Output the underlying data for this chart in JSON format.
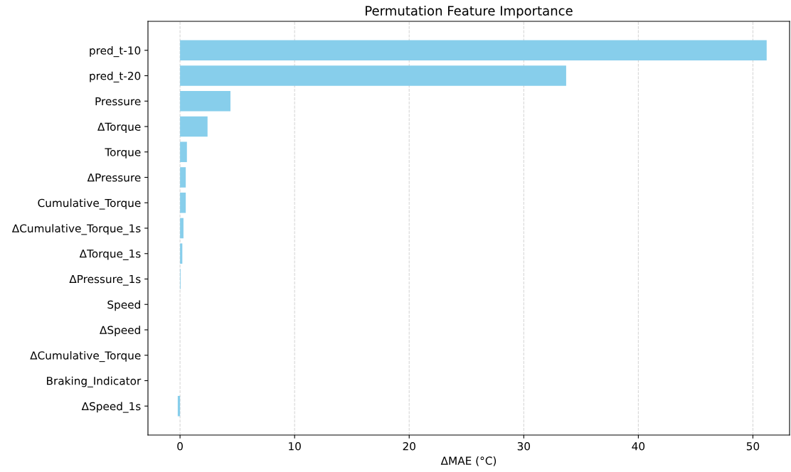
{
  "chart_data": {
    "type": "bar",
    "orientation": "horizontal",
    "title": "Permutation Feature Importance",
    "xlabel": "ΔMAE (°C)",
    "categories": [
      "pred_t-10",
      "pred_t-20",
      "Pressure",
      "ΔTorque",
      "Torque",
      "ΔPressure",
      "Cumulative_Torque",
      "ΔCumulative_Torque_1s",
      "ΔTorque_1s",
      "ΔPressure_1s",
      "Speed",
      "ΔSpeed",
      "ΔCumulative_Torque",
      "Braking_Indicator",
      "ΔSpeed_1s"
    ],
    "values": [
      51.2,
      33.7,
      4.4,
      2.4,
      0.6,
      0.5,
      0.5,
      0.3,
      0.2,
      0.05,
      0,
      0,
      0,
      0,
      -0.2
    ],
    "color": "#87ceeb",
    "xlim": [
      -2.8,
      53.2
    ],
    "xticks": [
      0,
      10,
      20,
      30,
      40,
      50
    ],
    "grid": "x"
  }
}
